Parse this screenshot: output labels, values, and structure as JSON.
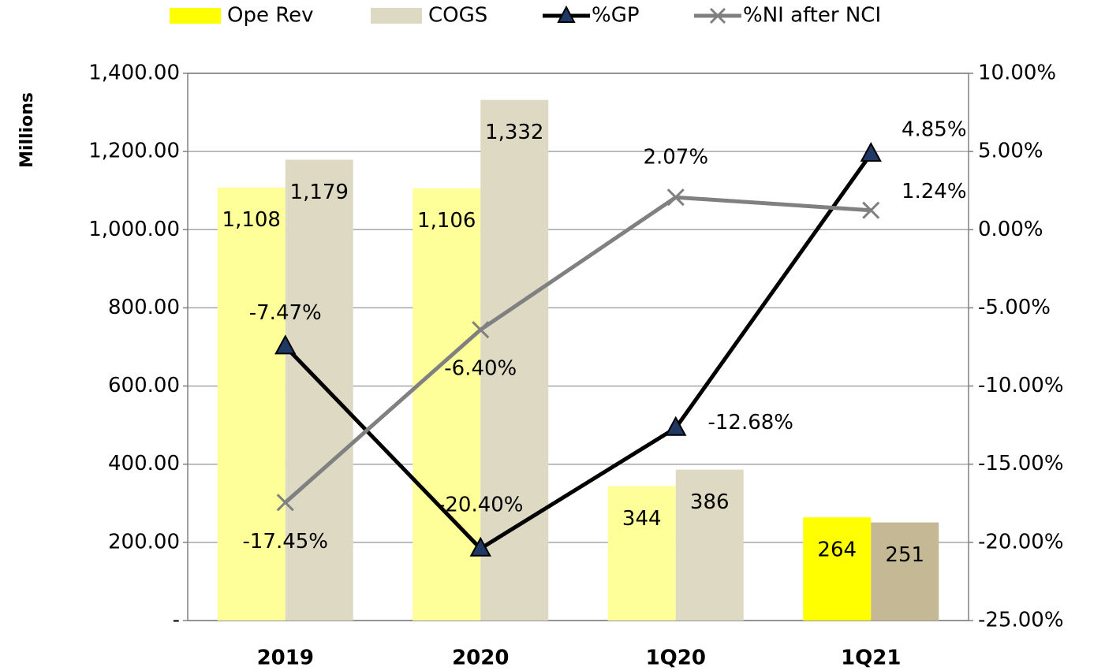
{
  "chart_data": {
    "type": "bar-line",
    "categories": [
      "2019",
      "2020",
      "1Q20",
      "1Q21"
    ],
    "y_label": "Millions",
    "ylim": [
      0,
      1400
    ],
    "yticks": [
      {
        "value": 0,
        "label": "-"
      },
      {
        "value": 200,
        "label": "200.00"
      },
      {
        "value": 400,
        "label": "400.00"
      },
      {
        "value": 600,
        "label": "600.00"
      },
      {
        "value": 800,
        "label": "800.00"
      },
      {
        "value": 1000,
        "label": "1,000.00"
      },
      {
        "value": 1200,
        "label": "1,200.00"
      },
      {
        "value": 1400,
        "label": "1,400.00"
      }
    ],
    "y2lim": [
      -25,
      10
    ],
    "y2ticks": [
      {
        "value": -25,
        "label": "-25.00%"
      },
      {
        "value": -20,
        "label": "-20.00%"
      },
      {
        "value": -15,
        "label": "-15.00%"
      },
      {
        "value": -10,
        "label": "-10.00%"
      },
      {
        "value": -5,
        "label": "-5.00%"
      },
      {
        "value": 0,
        "label": "0.00%"
      },
      {
        "value": 5,
        "label": "5.00%"
      },
      {
        "value": 10,
        "label": "10.00%"
      }
    ],
    "grid": true,
    "legend": "top",
    "series": [
      {
        "name": "Ope Rev",
        "kind": "bar",
        "color": "#ffff00",
        "colors": [
          "#ffff99",
          "#ffff99",
          "#ffff99",
          "#ffff00"
        ],
        "values": [
          1108,
          1106,
          344,
          264
        ],
        "value_labels": [
          "1,108",
          "1,106",
          "344",
          "264"
        ]
      },
      {
        "name": "COGS",
        "kind": "bar",
        "color": "#ddd9c3",
        "colors": [
          "#ddd9c3",
          "#ddd9c3",
          "#ddd9c3",
          "#c4b994"
        ],
        "values": [
          1179,
          1332,
          386,
          251
        ],
        "value_labels": [
          "1,179",
          "1,332",
          "386",
          "251"
        ]
      },
      {
        "name": "%GP",
        "kind": "line",
        "axis": "y2",
        "color": "#000000",
        "marker": "triangle",
        "marker_color": "#1f3864",
        "values": [
          -7.47,
          -20.4,
          -12.68,
          4.85
        ],
        "value_labels": [
          "-7.47%",
          "-20.40%",
          "-12.68%",
          "4.85%"
        ]
      },
      {
        "name": "%NI after NCI",
        "kind": "line",
        "axis": "y2",
        "color": "#808080",
        "marker": "x",
        "marker_color": "#808080",
        "values": [
          -17.45,
          -6.4,
          2.07,
          1.24
        ],
        "value_labels": [
          "-17.45%",
          "-6.40%",
          "2.07%",
          "1.24%"
        ]
      }
    ]
  }
}
